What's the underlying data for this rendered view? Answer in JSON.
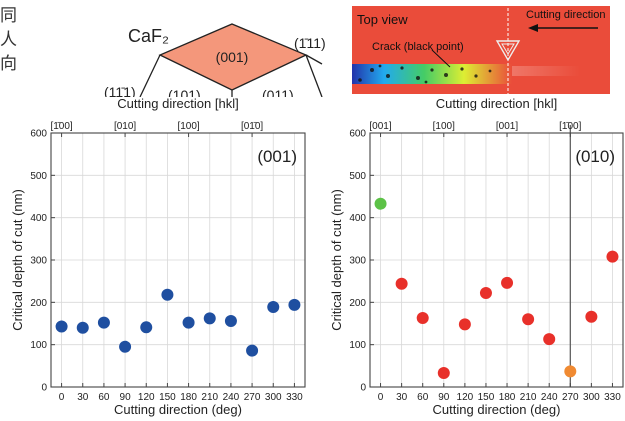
{
  "side_text": [
    "同",
    "人",
    "向"
  ],
  "crystal_inset": {
    "label_material": "CaF₂",
    "face_center": "(001)",
    "face_right": "(1̄11)",
    "face_left": "(11̄1)",
    "face_low_left": "(101)",
    "face_low_right": "(011)",
    "center_color": "#f4977b"
  },
  "photo_inset": {
    "label_view": "Top view",
    "label_direction": "Cutting direction",
    "label_crack": "Crack (black point)",
    "background_color": "#ea4c3a"
  },
  "chart_data": [
    {
      "type": "scatter",
      "panel_label": "(001)",
      "title": "",
      "top_axis_label": "Cutting direction [hkl]",
      "top_ticks": [
        {
          "x": 0,
          "label": "[1̄00]"
        },
        {
          "x": 90,
          "label": "[010]"
        },
        {
          "x": 180,
          "label": "[100]"
        },
        {
          "x": 270,
          "label": "[01̄0]"
        }
      ],
      "xlabel": "Cutting direction (deg)",
      "ylabel": "Critical depth of cut (nm)",
      "xlim": [
        -15,
        345
      ],
      "ylim": [
        0,
        600
      ],
      "xticks": [
        0,
        30,
        60,
        90,
        120,
        150,
        180,
        210,
        240,
        270,
        300,
        330
      ],
      "yticks": [
        0,
        100,
        200,
        300,
        400,
        500,
        600
      ],
      "grid": true,
      "point_color": "#1f4fa0",
      "points": [
        {
          "x": 0,
          "y": 143
        },
        {
          "x": 30,
          "y": 140
        },
        {
          "x": 60,
          "y": 152
        },
        {
          "x": 90,
          "y": 95
        },
        {
          "x": 120,
          "y": 141
        },
        {
          "x": 150,
          "y": 218
        },
        {
          "x": 180,
          "y": 152
        },
        {
          "x": 210,
          "y": 162
        },
        {
          "x": 240,
          "y": 156
        },
        {
          "x": 270,
          "y": 86
        },
        {
          "x": 300,
          "y": 189
        },
        {
          "x": 330,
          "y": 194
        }
      ]
    },
    {
      "type": "scatter",
      "panel_label": "(010)",
      "title": "",
      "top_axis_label": "Cutting direction [hkl]",
      "top_ticks": [
        {
          "x": 0,
          "label": "[001]"
        },
        {
          "x": 90,
          "label": "[100]"
        },
        {
          "x": 180,
          "label": "[001]"
        },
        {
          "x": 270,
          "label": "[1̄00]"
        }
      ],
      "xlabel": "Cutting direction (deg)",
      "ylabel": "Critical depth of cut (nm)",
      "xlim": [
        -15,
        345
      ],
      "ylim": [
        0,
        600
      ],
      "xticks": [
        0,
        30,
        60,
        90,
        120,
        150,
        180,
        210,
        240,
        270,
        300,
        330
      ],
      "yticks": [
        0,
        100,
        200,
        300,
        400,
        500,
        600
      ],
      "grid": true,
      "vline_x": 270,
      "points": [
        {
          "x": 0,
          "y": 433,
          "color": "#5cc247"
        },
        {
          "x": 30,
          "y": 244,
          "color": "#e8302a"
        },
        {
          "x": 60,
          "y": 163,
          "color": "#e8302a"
        },
        {
          "x": 90,
          "y": 33,
          "color": "#e8302a"
        },
        {
          "x": 120,
          "y": 148,
          "color": "#e8302a"
        },
        {
          "x": 150,
          "y": 222,
          "color": "#e8302a"
        },
        {
          "x": 180,
          "y": 246,
          "color": "#e8302a"
        },
        {
          "x": 210,
          "y": 160,
          "color": "#e8302a"
        },
        {
          "x": 240,
          "y": 113,
          "color": "#e8302a"
        },
        {
          "x": 270,
          "y": 37,
          "color": "#f08a32"
        },
        {
          "x": 300,
          "y": 166,
          "color": "#e8302a"
        },
        {
          "x": 330,
          "y": 308,
          "color": "#e8302a"
        }
      ]
    }
  ]
}
